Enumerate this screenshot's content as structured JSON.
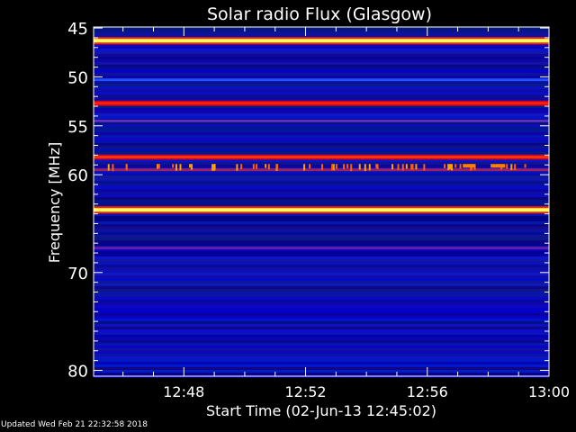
{
  "chart_data": {
    "type": "heatmap",
    "title": "Solar radio Flux (Glasgow)",
    "xlabel": "Start Time (02-Jun-13 12:45:02)",
    "ylabel": "Frequency [MHz]",
    "x_start": "12:45:02",
    "x_end": "13:00:00",
    "x_ticks": [
      "12:48",
      "12:52",
      "12:56",
      "13:00"
    ],
    "y_ticks": [
      45,
      50,
      55,
      60,
      70,
      80
    ],
    "ylim": [
      44.9,
      80.6
    ],
    "y_inverted": true,
    "colormap": [
      "#000060",
      "#0000c0",
      "#2040ff",
      "#c00020",
      "#ff2000",
      "#ffb000",
      "#ffff80"
    ],
    "bands": [
      {
        "freq_mhz": 46.3,
        "level": "very high",
        "color": "#ffff60"
      },
      {
        "freq_mhz": 50.3,
        "level": "medium",
        "color": "#2050ff"
      },
      {
        "freq_mhz": 52.7,
        "level": "high",
        "color": "#ff2000"
      },
      {
        "freq_mhz": 54.5,
        "level": "medium",
        "color": "#6030c0"
      },
      {
        "freq_mhz": 58.2,
        "level": "high",
        "color": "#ff3000"
      },
      {
        "freq_mhz": 59.5,
        "level": "medium",
        "color": "#a02060"
      },
      {
        "freq_mhz": 63.6,
        "level": "very high",
        "color": "#ffff60"
      },
      {
        "freq_mhz": 67.5,
        "level": "low",
        "color": "#6020a0"
      }
    ],
    "bursts_freq_mhz": 59.0
  },
  "footer": "Updated Wed Feb 21 22:32:58 2018"
}
